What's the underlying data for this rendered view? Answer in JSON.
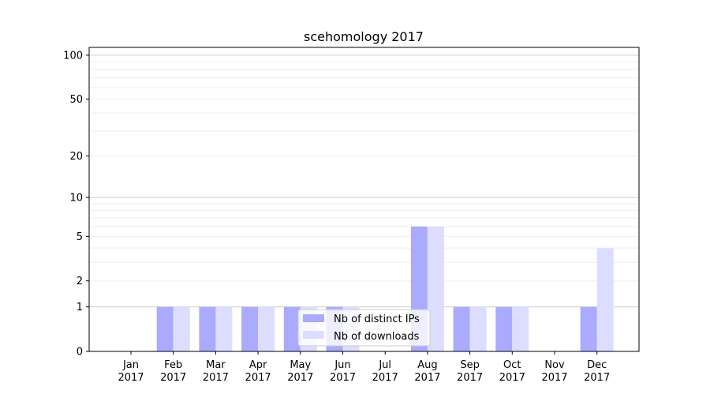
{
  "chart_data": {
    "type": "bar",
    "title": "scehomology 2017",
    "xlabel": "",
    "ylabel": "",
    "yscale": "log1p",
    "ylim": [
      0,
      113
    ],
    "yticks": [
      0,
      1,
      2,
      5,
      10,
      20,
      50,
      100
    ],
    "categories": [
      "Jan\n2017",
      "Feb\n2017",
      "Mar\n2017",
      "Apr\n2017",
      "May\n2017",
      "Jun\n2017",
      "Jul\n2017",
      "Aug\n2017",
      "Sep\n2017",
      "Oct\n2017",
      "Nov\n2017",
      "Dec\n2017"
    ],
    "series": [
      {
        "name": "Nb of distinct IPs",
        "color": "#aaaaff",
        "values": [
          0,
          1,
          1,
          1,
          1,
          1,
          0,
          6,
          1,
          1,
          0,
          1
        ]
      },
      {
        "name": "Nb of downloads",
        "color": "#ddddff",
        "values": [
          0,
          1,
          1,
          1,
          1,
          1,
          0,
          6,
          1,
          1,
          0,
          4
        ]
      }
    ],
    "grid": true,
    "legend_position": "lower-center"
  }
}
